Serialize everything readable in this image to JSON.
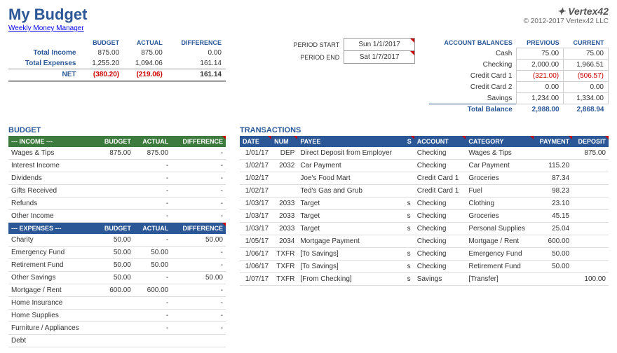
{
  "header": {
    "title": "My Budget",
    "subtitle": "Weekly Money Manager",
    "vertex_logo": "✦ Vertex42",
    "copyright": "© 2012-2017 Vertex42 LLC"
  },
  "summary": {
    "cols": [
      "BUDGET",
      "ACTUAL",
      "DIFFERENCE"
    ],
    "income_label": "Total Income",
    "income": [
      "875.00",
      "875.00",
      "0.00"
    ],
    "expenses_label": "Total Expenses",
    "expenses": [
      "1,255.20",
      "1,094.06",
      "161.14"
    ],
    "net_label": "NET",
    "net": [
      "(380.20)",
      "(219.06)",
      "161.14"
    ]
  },
  "period": {
    "start_label": "PERIOD START",
    "start_val": "Sun 1/1/2017",
    "end_label": "PERIOD END",
    "end_val": "Sat 1/7/2017"
  },
  "balances": {
    "title": "ACCOUNT BALANCES",
    "cols": [
      "PREVIOUS",
      "CURRENT"
    ],
    "rows": [
      {
        "label": "Cash",
        "prev": "75.00",
        "curr": "75.00",
        "neg": false
      },
      {
        "label": "Checking",
        "prev": "2,000.00",
        "curr": "1,966.51",
        "neg": false
      },
      {
        "label": "Credit Card 1",
        "prev": "(321.00)",
        "curr": "(506.57)",
        "neg": true
      },
      {
        "label": "Credit Card 2",
        "prev": "0.00",
        "curr": "0.00",
        "neg": false
      },
      {
        "label": "Savings",
        "prev": "1,234.00",
        "curr": "1,334.00",
        "neg": false
      }
    ],
    "total_label": "Total Balance",
    "total": [
      "2,988.00",
      "2,868.94"
    ]
  },
  "budget": {
    "title": "BUDGET",
    "income_header": "--- INCOME ---",
    "expenses_header": "--- EXPENSES ---",
    "cols": [
      "BUDGET",
      "ACTUAL",
      "DIFFERENCE"
    ],
    "income_rows": [
      {
        "label": "Wages & Tips",
        "b": "875.00",
        "a": "875.00",
        "d": "-"
      },
      {
        "label": "Interest Income",
        "b": "",
        "a": "-",
        "d": "-"
      },
      {
        "label": "Dividends",
        "b": "",
        "a": "-",
        "d": "-"
      },
      {
        "label": "Gifts Received",
        "b": "",
        "a": "-",
        "d": "-"
      },
      {
        "label": "Refunds",
        "b": "",
        "a": "-",
        "d": "-"
      },
      {
        "label": "Other Income",
        "b": "",
        "a": "-",
        "d": "-"
      }
    ],
    "expense_rows": [
      {
        "label": "Charity",
        "b": "50.00",
        "a": "-",
        "d": "50.00"
      },
      {
        "label": "Emergency Fund",
        "b": "50.00",
        "a": "50.00",
        "d": "-"
      },
      {
        "label": "Retirement Fund",
        "b": "50.00",
        "a": "50.00",
        "d": "-"
      },
      {
        "label": "Other Savings",
        "b": "50.00",
        "a": "-",
        "d": "50.00"
      },
      {
        "label": "Mortgage / Rent",
        "b": "600.00",
        "a": "600.00",
        "d": "-"
      },
      {
        "label": "Home Insurance",
        "b": "",
        "a": "-",
        "d": "-"
      },
      {
        "label": "Home Supplies",
        "b": "",
        "a": "-",
        "d": "-"
      },
      {
        "label": "Furniture / Appliances",
        "b": "",
        "a": "-",
        "d": "-"
      },
      {
        "label": "Debt",
        "b": "",
        "a": "",
        "d": ""
      }
    ]
  },
  "transactions": {
    "title": "TRANSACTIONS",
    "cols": [
      "DATE",
      "NUM",
      "PAYEE",
      "S",
      "ACCOUNT",
      "CATEGORY",
      "PAYMENT",
      "DEPOSIT"
    ],
    "rows": [
      {
        "date": "1/01/17",
        "num": "DEP",
        "payee": "Direct Deposit from Employer",
        "s": "",
        "acct": "Checking",
        "cat": "Wages & Tips",
        "pay": "",
        "dep": "875.00"
      },
      {
        "date": "1/02/17",
        "num": "2032",
        "payee": "Car Payment",
        "s": "",
        "acct": "Checking",
        "cat": "Car Payment",
        "pay": "115.20",
        "dep": ""
      },
      {
        "date": "1/02/17",
        "num": "",
        "payee": "Joe's Food Mart",
        "s": "",
        "acct": "Credit Card 1",
        "cat": "Groceries",
        "pay": "87.34",
        "dep": ""
      },
      {
        "date": "1/02/17",
        "num": "",
        "payee": "Ted's Gas and Grub",
        "s": "",
        "acct": "Credit Card 1",
        "cat": "Fuel",
        "pay": "98.23",
        "dep": ""
      },
      {
        "date": "1/03/17",
        "num": "2033",
        "payee": "Target",
        "s": "s",
        "acct": "Checking",
        "cat": "Clothing",
        "pay": "23.10",
        "dep": ""
      },
      {
        "date": "1/03/17",
        "num": "2033",
        "payee": "Target",
        "s": "s",
        "acct": "Checking",
        "cat": "Groceries",
        "pay": "45.15",
        "dep": ""
      },
      {
        "date": "1/03/17",
        "num": "2033",
        "payee": "Target",
        "s": "s",
        "acct": "Checking",
        "cat": "Personal Supplies",
        "pay": "25.04",
        "dep": ""
      },
      {
        "date": "1/05/17",
        "num": "2034",
        "payee": "Mortgage Payment",
        "s": "",
        "acct": "Checking",
        "cat": "Mortgage / Rent",
        "pay": "600.00",
        "dep": ""
      },
      {
        "date": "1/06/17",
        "num": "TXFR",
        "payee": "[To Savings]",
        "s": "s",
        "acct": "Checking",
        "cat": "Emergency Fund",
        "pay": "50.00",
        "dep": ""
      },
      {
        "date": "1/06/17",
        "num": "TXFR",
        "payee": "[To Savings]",
        "s": "s",
        "acct": "Checking",
        "cat": "Retirement Fund",
        "pay": "50.00",
        "dep": ""
      },
      {
        "date": "1/07/17",
        "num": "TXFR",
        "payee": "[From Checking]",
        "s": "s",
        "acct": "Savings",
        "cat": "[Transfer]",
        "pay": "",
        "dep": "100.00"
      }
    ]
  }
}
